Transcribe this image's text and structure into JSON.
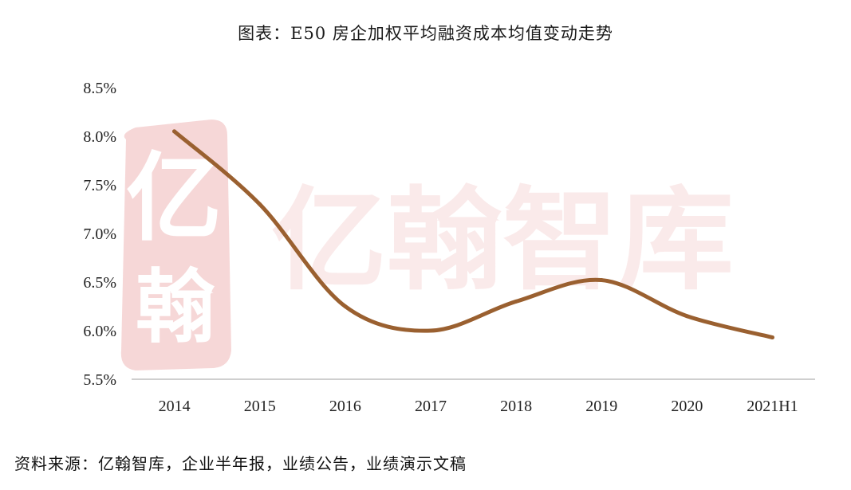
{
  "title": "图表：E50 房企加权平均融资成本均值变动走势",
  "source": "资料来源：亿翰智库，企业半年报，业绩公告，业绩演示文稿",
  "watermark": {
    "seal_top": "亿",
    "seal_bottom": "翰",
    "text": "亿翰智库",
    "color": "#f5cfcf"
  },
  "colors": {
    "line": "#9a6030",
    "axis": "#bfbfbf"
  },
  "chart_data": {
    "type": "line",
    "title": "图表：E50 房企加权平均融资成本均值变动走势",
    "xlabel": "",
    "ylabel": "",
    "categories": [
      "2014",
      "2015",
      "2016",
      "2017",
      "2018",
      "2019",
      "2020",
      "2021H1"
    ],
    "series": [
      {
        "values": [
          8.05,
          7.3,
          6.25,
          6.0,
          6.3,
          6.52,
          6.15,
          5.93
        ]
      }
    ],
    "ylim": [
      5.5,
      8.5
    ],
    "yticks": [
      5.5,
      6.0,
      6.5,
      7.0,
      7.5,
      8.0,
      8.5
    ],
    "ytick_labels": [
      "5.5%",
      "6.0%",
      "6.5%",
      "7.0%",
      "7.5%",
      "8.0%",
      "8.5%"
    ],
    "smooth": true,
    "grid": false,
    "legend": "none"
  }
}
